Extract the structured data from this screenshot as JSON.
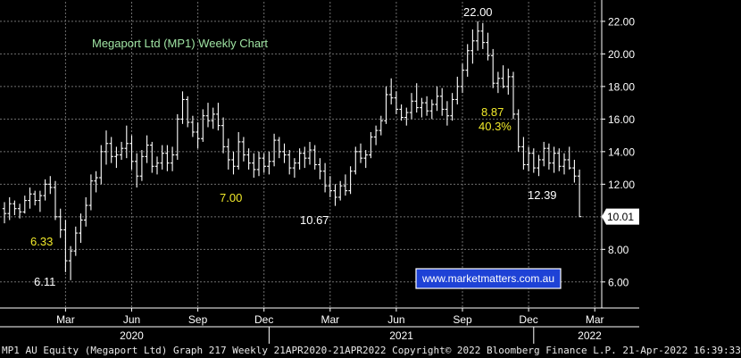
{
  "chart_data": {
    "type": "candlestick",
    "title": "Megaport Ltd (MP1) Weekly Chart",
    "ylim": [
      4.4,
      23.2
    ],
    "y_ticks": [
      6.0,
      8.0,
      10.0,
      12.0,
      14.0,
      16.0,
      18.0,
      20.0,
      22.0
    ],
    "y_tick_labels": [
      "6.00",
      "8.00",
      "10.00",
      "12.00",
      "14.00",
      "16.00",
      "18.00",
      "20.00",
      "22.00"
    ],
    "last_price": 10.01,
    "last_price_label": "10.01",
    "x_month_labels": [
      {
        "label": "Mar",
        "week": 12
      },
      {
        "label": "Jun",
        "week": 25
      },
      {
        "label": "Sep",
        "week": 38
      },
      {
        "label": "Dec",
        "week": 51
      },
      {
        "label": "Mar",
        "week": 64
      },
      {
        "label": "Jun",
        "week": 77
      },
      {
        "label": "Sep",
        "week": 90
      },
      {
        "label": "Dec",
        "week": 103
      },
      {
        "label": "Mar",
        "week": 116
      }
    ],
    "x_year_labels": [
      {
        "label": "2020",
        "week": 25
      },
      {
        "label": "2021",
        "week": 78
      },
      {
        "label": "2022",
        "week": 115
      }
    ],
    "year_boundaries": [
      52,
      104
    ],
    "series_weekly_ohlc": [
      [
        0,
        10.5,
        10.9,
        9.6,
        10.2
      ],
      [
        1,
        10.2,
        11.2,
        9.8,
        10.8
      ],
      [
        2,
        10.8,
        11.0,
        10.1,
        10.5
      ],
      [
        3,
        10.5,
        10.8,
        9.9,
        10.3
      ],
      [
        4,
        10.3,
        11.3,
        10.2,
        11.0
      ],
      [
        5,
        11.0,
        11.8,
        10.5,
        11.4
      ],
      [
        6,
        11.4,
        11.6,
        10.7,
        11.0
      ],
      [
        7,
        11.0,
        11.6,
        10.3,
        11.3
      ],
      [
        8,
        11.3,
        12.3,
        11.0,
        12.0
      ],
      [
        9,
        12.0,
        12.5,
        11.4,
        11.8
      ],
      [
        10,
        11.8,
        12.2,
        9.8,
        10.0
      ],
      [
        11,
        10.0,
        10.5,
        8.7,
        9.2
      ],
      [
        12,
        9.2,
        9.8,
        6.6,
        7.3
      ],
      [
        13,
        7.3,
        8.2,
        6.11,
        7.9
      ],
      [
        14,
        7.9,
        9.4,
        7.6,
        9.0
      ],
      [
        15,
        9.0,
        10.2,
        8.4,
        9.8
      ],
      [
        16,
        9.8,
        11.2,
        9.4,
        10.7
      ],
      [
        17,
        10.7,
        12.6,
        10.4,
        12.2
      ],
      [
        18,
        12.2,
        12.8,
        11.5,
        12.4
      ],
      [
        19,
        12.4,
        14.4,
        12.0,
        14.0
      ],
      [
        20,
        14.0,
        15.3,
        13.2,
        14.5
      ],
      [
        21,
        14.5,
        14.9,
        13.3,
        13.7
      ],
      [
        22,
        13.7,
        14.3,
        13.0,
        13.8
      ],
      [
        23,
        13.8,
        14.6,
        13.5,
        14.2
      ],
      [
        24,
        14.2,
        15.6,
        13.6,
        14.5
      ],
      [
        25,
        14.5,
        15.0,
        12.9,
        13.4
      ],
      [
        26,
        13.4,
        13.9,
        11.8,
        12.5
      ],
      [
        27,
        12.5,
        14.1,
        12.2,
        13.7
      ],
      [
        28,
        13.7,
        15.0,
        13.3,
        14.4
      ],
      [
        29,
        14.4,
        14.6,
        12.7,
        13.1
      ],
      [
        30,
        13.1,
        13.7,
        12.6,
        13.3
      ],
      [
        31,
        13.3,
        14.4,
        12.9,
        13.9
      ],
      [
        32,
        13.9,
        14.4,
        12.8,
        13.3
      ],
      [
        33,
        13.3,
        14.3,
        12.8,
        13.8
      ],
      [
        34,
        13.8,
        16.3,
        13.5,
        16.0
      ],
      [
        35,
        16.0,
        17.7,
        15.7,
        17.2
      ],
      [
        36,
        17.2,
        17.4,
        15.5,
        15.8
      ],
      [
        37,
        15.8,
        16.2,
        14.9,
        15.2
      ],
      [
        38,
        15.2,
        15.8,
        14.2,
        14.8
      ],
      [
        39,
        14.8,
        16.6,
        14.6,
        16.2
      ],
      [
        40,
        16.2,
        17.0,
        15.5,
        15.9
      ],
      [
        41,
        15.9,
        16.7,
        15.4,
        16.3
      ],
      [
        42,
        16.3,
        17.0,
        15.3,
        15.6
      ],
      [
        43,
        15.6,
        16.1,
        13.9,
        14.3
      ],
      [
        44,
        14.3,
        14.8,
        12.9,
        13.5
      ],
      [
        45,
        13.5,
        14.0,
        12.6,
        13.1
      ],
      [
        46,
        13.1,
        15.2,
        12.9,
        14.6
      ],
      [
        47,
        14.6,
        14.9,
        13.4,
        13.8
      ],
      [
        48,
        13.8,
        14.2,
        12.9,
        13.3
      ],
      [
        49,
        13.3,
        13.9,
        12.4,
        12.9
      ],
      [
        50,
        12.9,
        14.0,
        12.5,
        13.6
      ],
      [
        51,
        13.6,
        13.9,
        12.7,
        13.1
      ],
      [
        52,
        13.1,
        14.0,
        12.6,
        13.4
      ],
      [
        53,
        13.4,
        15.1,
        13.1,
        14.7
      ],
      [
        54,
        14.7,
        14.9,
        13.6,
        14.0
      ],
      [
        55,
        14.0,
        14.5,
        13.3,
        13.8
      ],
      [
        56,
        13.8,
        14.1,
        12.6,
        13.0
      ],
      [
        57,
        13.0,
        13.6,
        12.4,
        13.3
      ],
      [
        58,
        13.3,
        14.2,
        12.9,
        13.9
      ],
      [
        59,
        13.9,
        14.3,
        13.0,
        13.6
      ],
      [
        60,
        13.6,
        14.6,
        13.2,
        14.1
      ],
      [
        61,
        14.1,
        14.4,
        12.9,
        13.2
      ],
      [
        62,
        13.2,
        13.6,
        12.3,
        12.8
      ],
      [
        63,
        12.8,
        13.3,
        11.5,
        11.9
      ],
      [
        64,
        11.9,
        12.5,
        11.2,
        11.6
      ],
      [
        65,
        11.6,
        12.0,
        10.67,
        11.2
      ],
      [
        66,
        11.2,
        12.2,
        11.0,
        11.9
      ],
      [
        67,
        11.9,
        12.6,
        11.3,
        11.6
      ],
      [
        68,
        11.6,
        13.1,
        11.4,
        12.8
      ],
      [
        69,
        12.8,
        14.3,
        12.6,
        14.0
      ],
      [
        70,
        14.0,
        14.5,
        13.3,
        13.6
      ],
      [
        71,
        13.6,
        14.1,
        13.0,
        13.8
      ],
      [
        72,
        13.8,
        15.2,
        13.6,
        14.9
      ],
      [
        73,
        14.9,
        15.6,
        14.4,
        15.3
      ],
      [
        74,
        15.3,
        16.2,
        15.0,
        15.9
      ],
      [
        75,
        15.9,
        18.0,
        15.7,
        17.5
      ],
      [
        76,
        17.5,
        18.5,
        16.9,
        17.3
      ],
      [
        77,
        17.3,
        17.7,
        16.3,
        16.6
      ],
      [
        78,
        16.6,
        16.9,
        15.9,
        16.1
      ],
      [
        79,
        16.1,
        16.7,
        15.6,
        16.4
      ],
      [
        80,
        16.4,
        17.6,
        16.0,
        17.1
      ],
      [
        81,
        17.1,
        18.2,
        16.4,
        16.7
      ],
      [
        82,
        16.7,
        17.3,
        16.1,
        17.0
      ],
      [
        83,
        17.0,
        17.4,
        16.2,
        16.5
      ],
      [
        84,
        16.5,
        17.2,
        16.0,
        16.9
      ],
      [
        85,
        16.9,
        18.0,
        16.5,
        17.4
      ],
      [
        86,
        17.4,
        17.9,
        16.2,
        16.6
      ],
      [
        87,
        16.6,
        17.1,
        15.6,
        16.2
      ],
      [
        88,
        16.2,
        17.6,
        15.9,
        17.2
      ],
      [
        89,
        17.2,
        18.6,
        16.9,
        18.0
      ],
      [
        90,
        18.0,
        19.4,
        17.6,
        19.0
      ],
      [
        91,
        19.0,
        20.6,
        18.6,
        20.2
      ],
      [
        92,
        20.2,
        21.5,
        19.4,
        20.8
      ],
      [
        93,
        20.8,
        22.0,
        20.2,
        21.4
      ],
      [
        94,
        21.4,
        21.9,
        20.3,
        20.7
      ],
      [
        95,
        20.7,
        21.3,
        19.6,
        19.9
      ],
      [
        96,
        19.9,
        20.3,
        17.9,
        18.2
      ],
      [
        97,
        18.2,
        18.9,
        17.6,
        18.5
      ],
      [
        98,
        18.5,
        19.3,
        17.9,
        18.0
      ],
      [
        99,
        18.0,
        19.1,
        17.5,
        18.6
      ],
      [
        100,
        18.6,
        18.9,
        16.0,
        16.3
      ],
      [
        101,
        16.3,
        16.6,
        14.0,
        14.3
      ],
      [
        102,
        14.3,
        14.9,
        12.9,
        13.2
      ],
      [
        103,
        13.2,
        14.3,
        12.8,
        13.9
      ],
      [
        104,
        13.9,
        14.2,
        12.7,
        13.0
      ],
      [
        105,
        13.0,
        13.8,
        12.5,
        13.5
      ],
      [
        106,
        13.5,
        14.6,
        13.1,
        14.2
      ],
      [
        107,
        14.2,
        14.5,
        12.9,
        13.3
      ],
      [
        108,
        13.3,
        14.3,
        12.7,
        13.9
      ],
      [
        109,
        13.9,
        14.2,
        12.8,
        13.1
      ],
      [
        110,
        13.1,
        13.9,
        12.6,
        13.5
      ],
      [
        111,
        13.5,
        14.3,
        12.9,
        13.0
      ],
      [
        112,
        13.0,
        13.5,
        12.1,
        12.5
      ],
      [
        113,
        12.5,
        12.9,
        10.01,
        10.01
      ]
    ],
    "annotations": [
      {
        "text": "6.33",
        "color": "yellow"
      },
      {
        "text": "6.11",
        "color": "white"
      },
      {
        "text": "7.00",
        "color": "yellow"
      },
      {
        "text": "10.67",
        "color": "white"
      },
      {
        "text": "8.87",
        "color": "yellow"
      },
      {
        "text": "40.3%",
        "color": "yellow"
      },
      {
        "text": "22.00",
        "color": "white"
      },
      {
        "text": "12.39",
        "color": "white"
      }
    ],
    "watermark": "www.marketmatters.com.au",
    "grid": true,
    "colors": {
      "background": "#000000",
      "bars": "#ffffff",
      "grid": "#6f6f6f",
      "title": "#9fe3a3",
      "annotation_yellow": "#f2ea2a",
      "watermark_bg": "#1e42d6"
    }
  },
  "footer": {
    "text": "MP1 AU Equity (Megaport Ltd) Graph 217  Weekly 21APR2020-21APR2022  Copyright© 2022 Bloomberg Finance L.P.  21-Apr-2022 16:39:33"
  }
}
